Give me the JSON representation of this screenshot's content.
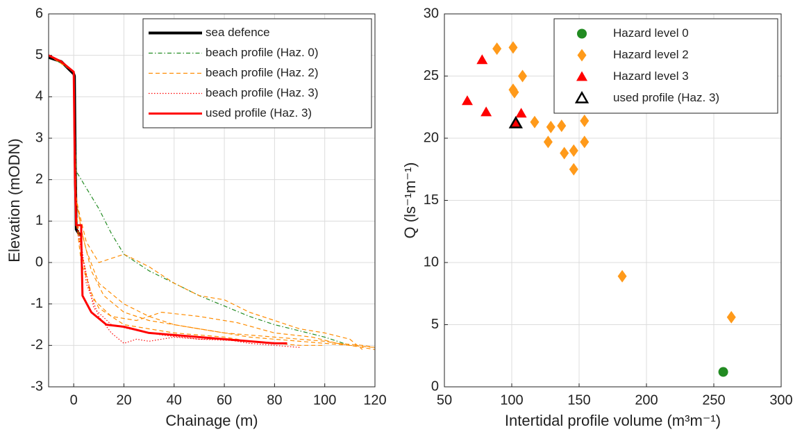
{
  "chart_data": [
    {
      "type": "line",
      "xlabel": "Chainage (m)",
      "ylabel": "Elevation (mODN)",
      "xlim": [
        -10,
        120
      ],
      "xticks": [
        0,
        20,
        40,
        60,
        80,
        100,
        120
      ],
      "ylim": [
        -3,
        6
      ],
      "yticks": [
        -3,
        -2,
        -1,
        0,
        1,
        2,
        3,
        4,
        5,
        6
      ],
      "grid": true,
      "legend": "upper right",
      "series": [
        {
          "name": "sea defence",
          "color": "#000000",
          "style": "solid",
          "width": 4,
          "profiles": [
            {
              "x": [
                -10,
                -5,
                0,
                0.3,
                0.6,
                1,
                2,
                3
              ],
              "values": [
                4.95,
                4.85,
                4.55,
                4.5,
                2.5,
                0.8,
                0.7,
                0.65
              ]
            }
          ]
        },
        {
          "name": "beach profile (Haz. 0)",
          "color": "#228b22",
          "style": "dashdot",
          "width": 1.2,
          "profiles": [
            {
              "x": [
                -10,
                0,
                0.5,
                1,
                5,
                10,
                15,
                20,
                30,
                40,
                50,
                60,
                70,
                80,
                90,
                100,
                110
              ],
              "values": [
                5,
                4.6,
                3,
                2.2,
                1.8,
                1.3,
                0.7,
                0.2,
                -0.2,
                -0.5,
                -0.8,
                -1.05,
                -1.3,
                -1.5,
                -1.65,
                -1.8,
                -2
              ]
            }
          ]
        },
        {
          "name": "beach profile (Haz. 2)",
          "color": "#ff8c00",
          "style": "dashed",
          "width": 1.2,
          "profiles": [
            {
              "x": [
                -10,
                0,
                0.5,
                1,
                3,
                5,
                10,
                20,
                30,
                40,
                50,
                60,
                70,
                80,
                90,
                100,
                110,
                120
              ],
              "values": [
                5,
                4.6,
                3,
                1.5,
                0.8,
                0.3,
                -0.5,
                -1,
                -1.3,
                -1.5,
                -1.6,
                -1.7,
                -1.75,
                -1.8,
                -1.85,
                -1.9,
                -2,
                -2.05
              ]
            },
            {
              "x": [
                0,
                1,
                5,
                10,
                20,
                30,
                40,
                50,
                60,
                70,
                80,
                90,
                100,
                110,
                115
              ],
              "values": [
                4.6,
                1.5,
                0.5,
                0,
                0.2,
                -0.1,
                -0.5,
                -0.8,
                -0.9,
                -1.2,
                -1.4,
                -1.6,
                -1.7,
                -1.85,
                -2.1
              ]
            },
            {
              "x": [
                0,
                1,
                3,
                7,
                12,
                20,
                30,
                40,
                50,
                60,
                70,
                80,
                90,
                100,
                110,
                120
              ],
              "values": [
                4.6,
                1.6,
                0.8,
                -0.2,
                -0.8,
                -1.2,
                -1.4,
                -1.5,
                -1.6,
                -1.7,
                -1.8,
                -1.85,
                -1.9,
                -1.95,
                -2,
                -2.1
              ]
            },
            {
              "x": [
                0,
                1,
                3,
                6,
                10,
                20,
                30,
                40,
                50,
                60,
                70,
                80,
                90,
                100
              ],
              "values": [
                4.6,
                1.2,
                0.3,
                -0.6,
                -1.1,
                -1.5,
                -1.6,
                -1.7,
                -1.75,
                -1.8,
                -1.9,
                -1.95,
                -2,
                -2
              ]
            },
            {
              "x": [
                0,
                1,
                3,
                8,
                15,
                25,
                35,
                50,
                65,
                80,
                95,
                105,
                115,
                120
              ],
              "values": [
                4.6,
                1,
                0,
                -0.9,
                -1.3,
                -1.4,
                -1.2,
                -1.3,
                -1.45,
                -1.7,
                -1.8,
                -1.95,
                -2,
                -2.05
              ]
            }
          ]
        },
        {
          "name": "beach profile (Haz. 3)",
          "color": "#ff0000",
          "style": "dotted",
          "width": 1.2,
          "profiles": [
            {
              "x": [
                0,
                1,
                3,
                5,
                10,
                15,
                20,
                25,
                30,
                40,
                50,
                60,
                70,
                80,
                90
              ],
              "values": [
                4.6,
                1,
                0.5,
                -0.5,
                -1.3,
                -1.7,
                -1.95,
                -1.85,
                -1.9,
                -1.8,
                -1.85,
                -1.85,
                -1.95,
                -2,
                -2.05
              ]
            },
            {
              "x": [
                0,
                1,
                3,
                8,
                15,
                22,
                35,
                50,
                70,
                85
              ],
              "values": [
                4.6,
                0.9,
                0.3,
                -1.1,
                -1.5,
                -1.6,
                -1.75,
                -1.85,
                -1.9,
                -1.95
              ]
            }
          ]
        },
        {
          "name": "used profile (Haz. 3)",
          "color": "#ff0000",
          "style": "solid",
          "width": 3,
          "profiles": [
            {
              "x": [
                -10,
                -5,
                0,
                0.5,
                1,
                3,
                3,
                3.5,
                7,
                13,
                20,
                30,
                40,
                50,
                60,
                70,
                80,
                85
              ],
              "values": [
                5,
                4.85,
                4.6,
                2,
                0.9,
                0.9,
                0.6,
                -0.8,
                -1.2,
                -1.5,
                -1.55,
                -1.7,
                -1.75,
                -1.8,
                -1.85,
                -1.9,
                -1.95,
                -1.95
              ]
            }
          ]
        }
      ]
    },
    {
      "type": "scatter",
      "xlabel": "Intertidal profile volume (m³m⁻¹)",
      "ylabel": "Q (ls⁻¹m⁻¹)",
      "xlim": [
        50,
        300
      ],
      "xticks": [
        50,
        100,
        150,
        200,
        250,
        300
      ],
      "ylim": [
        0,
        30
      ],
      "yticks": [
        0,
        5,
        10,
        15,
        20,
        25,
        30
      ],
      "grid": true,
      "legend": "upper right",
      "series": [
        {
          "name": "Hazard level 0",
          "color": "#228b22",
          "marker": "circle",
          "x": [
            257
          ],
          "values": [
            1.2
          ]
        },
        {
          "name": "Hazard level 2",
          "color": "#ff9a1a",
          "marker": "diamond",
          "x": [
            89,
            101,
            108,
            101,
            102,
            117,
            129,
            137,
            127,
            139,
            146,
            146,
            154,
            154,
            182,
            263
          ],
          "values": [
            27.2,
            27.3,
            25,
            23.9,
            23.7,
            21.3,
            20.9,
            21,
            19.7,
            18.8,
            19,
            17.5,
            21.4,
            19.7,
            8.9,
            5.6
          ]
        },
        {
          "name": "Hazard level 3",
          "color": "#ff0000",
          "marker": "triangle",
          "x": [
            78,
            67,
            81,
            107,
            103
          ],
          "values": [
            26.3,
            23,
            22.1,
            22,
            21.2
          ]
        },
        {
          "name": "used profile (Haz. 3)",
          "color": "#000000",
          "marker": "triangle-open",
          "x": [
            103
          ],
          "values": [
            21.2
          ]
        }
      ]
    }
  ]
}
